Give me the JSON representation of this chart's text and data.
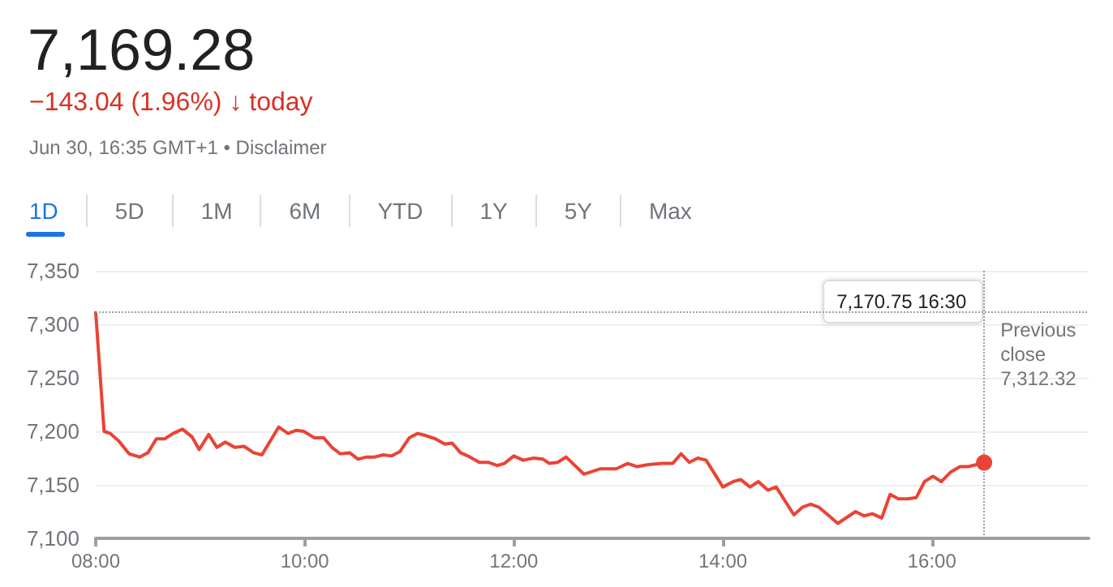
{
  "chart_data": {
    "type": "line",
    "title": "7,169.28",
    "subtitle": "−143.04 (1.96%) ↓ today",
    "annotations": [
      "Jun 30, 16:35 GMT+1 • Disclaimer",
      "1D",
      "5D",
      "1M",
      "6M",
      "YTD",
      "1Y",
      "5Y",
      "Max",
      "7,170.75 16:30"
    ],
    "series": [
      {
        "color": "#ea4335",
        "x": [
          8.0,
          8.08,
          8.14,
          8.22,
          8.32,
          8.42,
          8.5,
          8.58,
          8.66,
          8.74,
          8.83,
          8.92,
          8.99,
          9.08,
          9.16,
          9.24,
          9.33,
          9.42,
          9.51,
          9.59,
          9.75,
          9.84,
          9.92,
          9.99,
          10.09,
          10.18,
          10.26,
          10.34,
          10.43,
          10.51,
          10.59,
          10.67,
          10.75,
          10.83,
          10.91,
          11.0,
          11.08,
          11.16,
          11.25,
          11.34,
          11.41,
          11.49,
          11.56,
          11.67,
          11.76,
          11.84,
          11.91,
          12.0,
          12.09,
          12.19,
          12.28,
          12.34,
          12.42,
          12.5,
          12.67,
          12.83,
          12.98,
          13.09,
          13.18,
          13.29,
          13.42,
          13.52,
          13.6,
          13.68,
          13.76,
          13.84,
          14.0,
          14.1,
          14.17,
          14.26,
          14.34,
          14.43,
          14.51,
          14.68,
          14.76,
          14.84,
          14.92,
          15.1,
          15.27,
          15.35,
          15.43,
          15.52,
          15.6,
          15.68,
          15.77,
          15.85,
          15.93,
          16.01,
          16.09,
          16.18,
          16.27,
          16.35,
          16.5
        ],
        "values": [
          7311,
          7200,
          7198,
          7191,
          7179,
          7176,
          7180,
          7193,
          7193,
          7198,
          7202,
          7195,
          7183,
          7197,
          7185,
          7190,
          7185,
          7186,
          7180,
          7178,
          7204,
          7198,
          7201,
          7200,
          7194,
          7194,
          7185,
          7179,
          7180,
          7174,
          7176,
          7176,
          7178,
          7177,
          7181,
          7194,
          7198,
          7196,
          7193,
          7188,
          7189,
          7180,
          7177,
          7171,
          7171,
          7168,
          7170,
          7177,
          7173,
          7175,
          7174,
          7170,
          7171,
          7176,
          7160,
          7165,
          7165,
          7170,
          7167,
          7169,
          7170,
          7170,
          7179,
          7171,
          7175,
          7173,
          7148,
          7153,
          7155,
          7148,
          7153,
          7145,
          7148,
          7122,
          7129,
          7132,
          7129,
          7114,
          7125,
          7121,
          7123,
          7119,
          7141,
          7137,
          7137,
          7138,
          7153,
          7158,
          7153,
          7162,
          7167,
          7167,
          7170.75
        ]
      }
    ],
    "xlim": [
      8,
      17.5
    ],
    "xticks": [
      {
        "value": 8,
        "label": "08:00"
      },
      {
        "value": 10,
        "label": "10:00"
      },
      {
        "value": 12,
        "label": "12:00"
      },
      {
        "value": 14,
        "label": "14:00"
      },
      {
        "value": 16,
        "label": "16:00"
      }
    ],
    "ylim": [
      7100,
      7350
    ],
    "yticks": [
      {
        "value": 7100,
        "label": "7,100"
      },
      {
        "value": 7150,
        "label": "7,150"
      },
      {
        "value": 7200,
        "label": "7,200"
      },
      {
        "value": 7250,
        "label": "7,250"
      },
      {
        "value": 7300,
        "label": "7,300"
      },
      {
        "value": 7350,
        "label": "7,350"
      }
    ],
    "grid": "y",
    "marker": "none",
    "line_style": "solid",
    "ref_lines": [
      {
        "axis": "y",
        "value": 7312.32,
        "label": "Previous close 7,312.32",
        "color": "#9aa0a6",
        "line_style": "dotted"
      },
      {
        "axis": "x",
        "value": 16.5,
        "color": "#9aa0a6",
        "line_style": "dotted"
      }
    ]
  }
}
